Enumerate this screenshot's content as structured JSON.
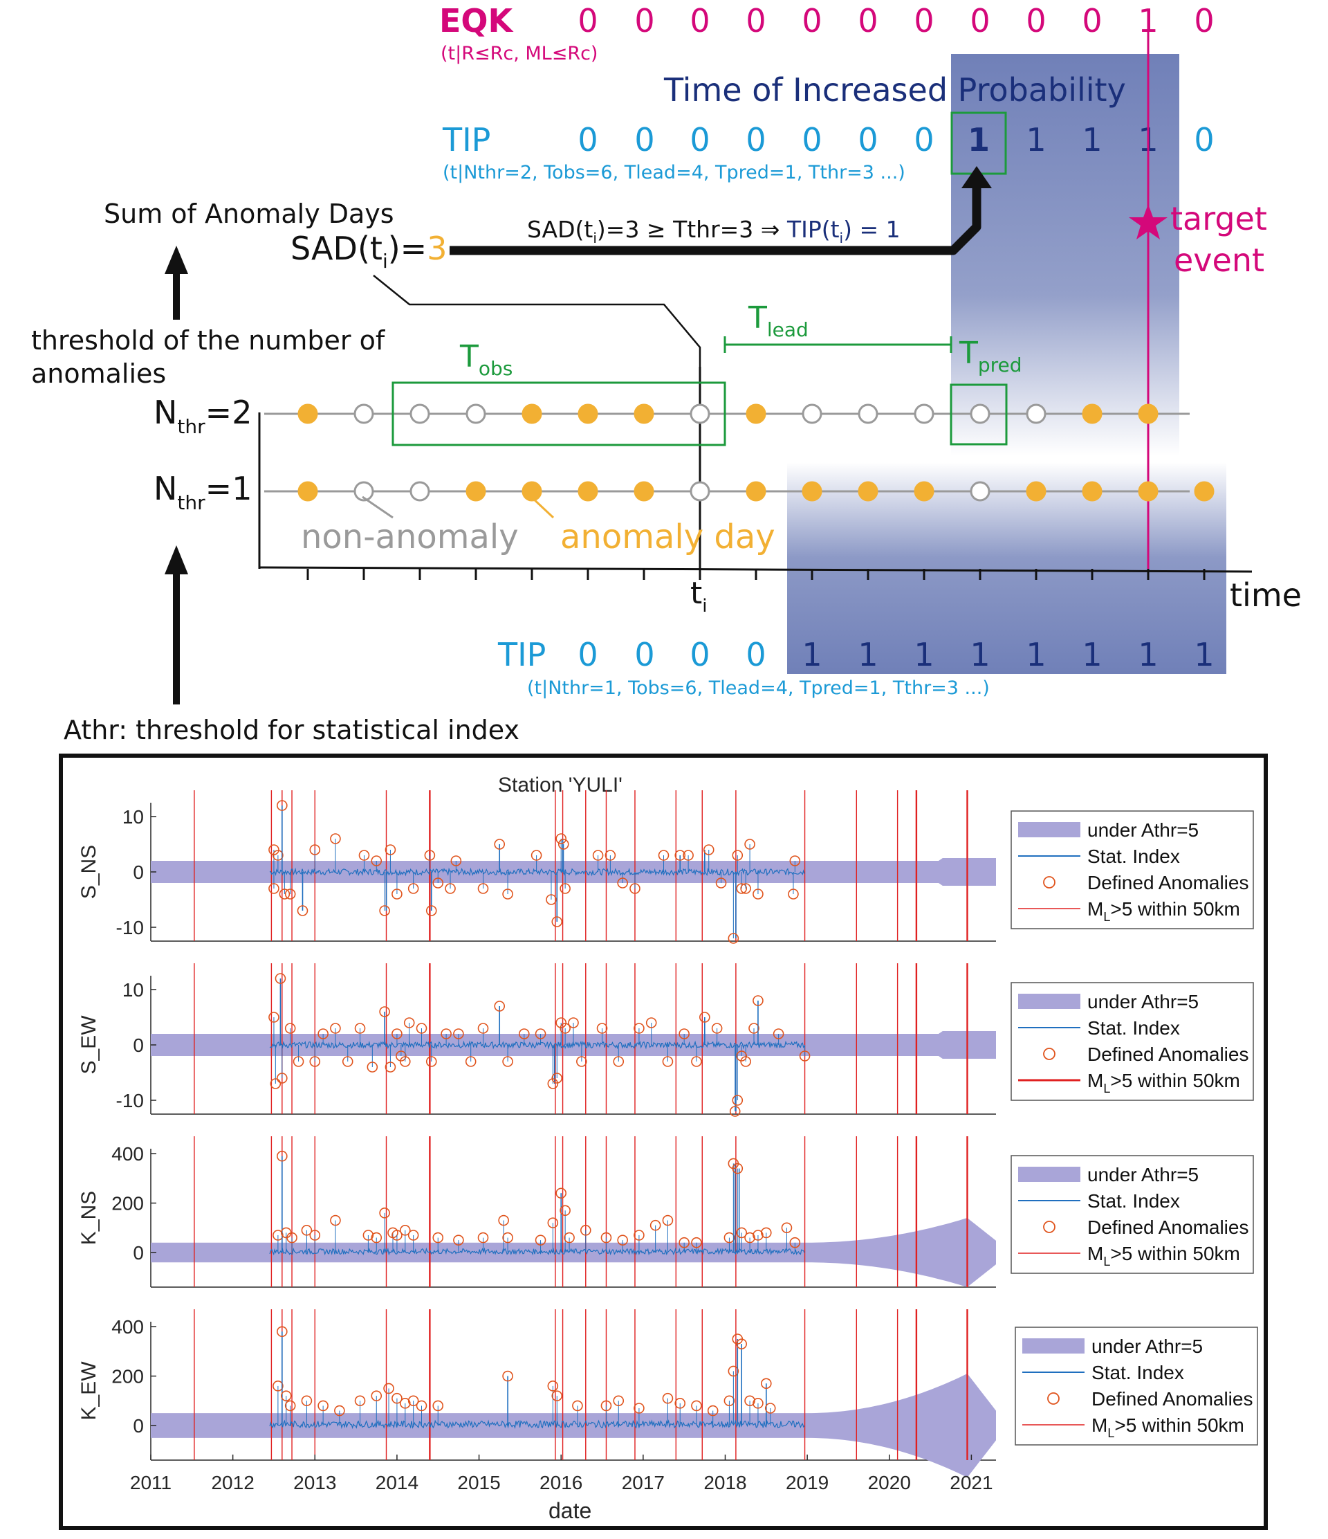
{
  "colors": {
    "magenta": "#d4087a",
    "cyan": "#1b9ad6",
    "navy": "#1a2f7a",
    "green": "#1c9a3c",
    "orange": "#f2b033",
    "gray": "#9a9a9a",
    "shade": "#7080b8",
    "band": "#a9a5d8",
    "series": "#1f6fbf",
    "anomaly": "#e0541d",
    "eq_line": "#e02020"
  },
  "diagram": {
    "eqk": {
      "label": "EQK",
      "sub": "(t|R≤Rc, ML≤Rc)",
      "values": [
        "0",
        "0",
        "0",
        "0",
        "0",
        "0",
        "0",
        "0",
        "0",
        "0",
        "1",
        "0"
      ]
    },
    "tip_title": "Time of Increased Probability",
    "tip2": {
      "label": "TIP",
      "sub": "(t|Nthr=2, Tobs=6, Tlead=4, Tpred=1, Tthr=3 ...)",
      "values": [
        "0",
        "0",
        "0",
        "0",
        "0",
        "0",
        "0",
        "1",
        "1",
        "1",
        "1",
        "0"
      ]
    },
    "tip1": {
      "label": "TIP",
      "sub": "(t|Nthr=1, Tobs=6, Tlead=4, Tpred=1, Tthr=3 ...)",
      "values": [
        "0",
        "0",
        "0",
        "0",
        "1",
        "1",
        "1",
        "1",
        "1",
        "1",
        "1",
        "1"
      ]
    },
    "sum_label": "Sum of Anomaly Days",
    "sad_label": "SAD(t",
    "sad_sub": "i",
    "sad_tail": ")=",
    "sad_value": "3",
    "rule_a": "SAD(t",
    "rule_sub": "i",
    "rule_b": ")=3 ≥ Tthr=3 ⇒ ",
    "rule_c": "TIP(t",
    "rule_d": ") = 1",
    "threshold_line1": "threshold of the number of",
    "threshold_line2": "anomalies",
    "nthr2": {
      "main": "N",
      "sub": "thr",
      "tail": "=2"
    },
    "nthr1": {
      "main": "N",
      "sub": "thr",
      "tail": "=1"
    },
    "tobs": {
      "main": "T",
      "sub": "obs"
    },
    "tlead": {
      "main": "T",
      "sub": "lead"
    },
    "tpred": {
      "main": "T",
      "sub": "pred"
    },
    "target_line1": "target",
    "target_line2": "event",
    "non_anomaly": "non-anomaly",
    "anomaly_day": "anomaly day",
    "ti_main": "t",
    "ti_sub": "i",
    "time_label": "time",
    "athr_label": "Athr: threshold for statistical index",
    "row2_anomaly": [
      1,
      0,
      0,
      0,
      1,
      1,
      1,
      0,
      1,
      0,
      0,
      0,
      0,
      0,
      1,
      1
    ],
    "row1_anomaly": [
      1,
      0,
      0,
      1,
      1,
      1,
      1,
      0,
      1,
      1,
      1,
      1,
      0,
      1,
      1,
      1,
      1
    ]
  },
  "chart_data": {
    "type": "line",
    "title": "Station 'YULI'",
    "xlabel": "date",
    "x_ticks": [
      "2011",
      "2012",
      "2013",
      "2014",
      "2015",
      "2016",
      "2017",
      "2018",
      "2019",
      "2020",
      "2021"
    ],
    "xlim": [
      2011,
      2021.3
    ],
    "eq_event_years": [
      2011.53,
      2012.47,
      2012.6,
      2012.72,
      2013.0,
      2013.87,
      2014.4,
      2015.93,
      2016.02,
      2016.3,
      2016.55,
      2016.9,
      2017.4,
      2017.72,
      2018.13,
      2018.97,
      2019.6,
      2020.1,
      2020.33,
      2020.95
    ],
    "legend": {
      "band": "under Athr=5",
      "series": "Stat. Index",
      "anomalies": "Defined Anomalies",
      "eq_main": "M",
      "eq_sub": "L",
      "eq_tail": ">5 within 50km"
    },
    "panels": [
      {
        "ylabel": "S_NS",
        "yticks": [
          "10",
          "0",
          "-10"
        ],
        "ylim": [
          -12.5,
          12.5
        ],
        "band_halfwidth": 2,
        "anomalies": [
          [
            2012.5,
            4
          ],
          [
            2012.55,
            3
          ],
          [
            2012.6,
            12
          ],
          [
            2012.63,
            -4
          ],
          [
            2012.7,
            -4
          ],
          [
            2012.5,
            -3
          ],
          [
            2012.85,
            -7
          ],
          [
            2013.0,
            4
          ],
          [
            2013.25,
            6
          ],
          [
            2013.6,
            3
          ],
          [
            2013.75,
            2
          ],
          [
            2013.85,
            -7
          ],
          [
            2013.92,
            4
          ],
          [
            2014.0,
            -4
          ],
          [
            2014.2,
            -3
          ],
          [
            2014.4,
            3
          ],
          [
            2014.42,
            -7
          ],
          [
            2014.5,
            -2
          ],
          [
            2014.65,
            -3
          ],
          [
            2014.72,
            2
          ],
          [
            2015.05,
            -3
          ],
          [
            2015.25,
            5
          ],
          [
            2015.35,
            -4
          ],
          [
            2015.7,
            3
          ],
          [
            2015.88,
            -5
          ],
          [
            2015.95,
            -9
          ],
          [
            2016.0,
            6
          ],
          [
            2016.03,
            5
          ],
          [
            2016.05,
            -3
          ],
          [
            2016.45,
            3
          ],
          [
            2016.6,
            3
          ],
          [
            2016.75,
            -2
          ],
          [
            2016.9,
            -3
          ],
          [
            2017.25,
            3
          ],
          [
            2017.45,
            3
          ],
          [
            2017.55,
            3
          ],
          [
            2017.8,
            4
          ],
          [
            2017.95,
            -2
          ],
          [
            2018.1,
            -12
          ],
          [
            2018.15,
            3
          ],
          [
            2018.3,
            5
          ],
          [
            2018.4,
            -4
          ],
          [
            2018.2,
            -3
          ],
          [
            2018.25,
            -3
          ],
          [
            2018.85,
            2
          ],
          [
            2018.83,
            -4
          ]
        ],
        "spikes": [
          [
            2012.6,
            12
          ],
          [
            2012.85,
            -7
          ],
          [
            2013.87,
            -7
          ],
          [
            2014.42,
            -7
          ],
          [
            2015.25,
            5
          ],
          [
            2015.95,
            -9
          ],
          [
            2016.02,
            6
          ],
          [
            2017.45,
            3
          ],
          [
            2017.75,
            4
          ],
          [
            2018.13,
            -12
          ]
        ]
      },
      {
        "ylabel": "S_EW",
        "yticks": [
          "10",
          "0",
          "-10"
        ],
        "ylim": [
          -12.5,
          12.5
        ],
        "band_halfwidth": 2,
        "anomalies": [
          [
            2012.5,
            5
          ],
          [
            2012.58,
            12
          ],
          [
            2012.6,
            -6
          ],
          [
            2012.52,
            -7
          ],
          [
            2012.7,
            3
          ],
          [
            2012.8,
            -3
          ],
          [
            2013.0,
            -3
          ],
          [
            2013.1,
            2
          ],
          [
            2013.25,
            3
          ],
          [
            2013.4,
            -3
          ],
          [
            2013.55,
            3
          ],
          [
            2013.7,
            -4
          ],
          [
            2013.85,
            6
          ],
          [
            2013.92,
            -4
          ],
          [
            2014.0,
            2
          ],
          [
            2014.05,
            -2
          ],
          [
            2014.1,
            -3
          ],
          [
            2014.15,
            4
          ],
          [
            2014.3,
            3
          ],
          [
            2014.42,
            -3
          ],
          [
            2014.6,
            2
          ],
          [
            2014.75,
            2
          ],
          [
            2014.9,
            -3
          ],
          [
            2015.05,
            3
          ],
          [
            2015.25,
            7
          ],
          [
            2015.35,
            -3
          ],
          [
            2015.55,
            2
          ],
          [
            2015.75,
            2
          ],
          [
            2015.9,
            -7
          ],
          [
            2015.95,
            -6
          ],
          [
            2016.0,
            4
          ],
          [
            2016.05,
            3
          ],
          [
            2016.15,
            4
          ],
          [
            2016.25,
            -3
          ],
          [
            2016.5,
            3
          ],
          [
            2016.7,
            -3
          ],
          [
            2016.95,
            3
          ],
          [
            2017.1,
            4
          ],
          [
            2017.3,
            -3
          ],
          [
            2017.5,
            2
          ],
          [
            2017.65,
            -3
          ],
          [
            2017.75,
            5
          ],
          [
            2017.9,
            3
          ],
          [
            2018.12,
            -12
          ],
          [
            2018.15,
            -10
          ],
          [
            2018.25,
            -3
          ],
          [
            2018.35,
            3
          ],
          [
            2018.4,
            8
          ],
          [
            2018.2,
            -2
          ],
          [
            2018.65,
            2
          ],
          [
            2018.97,
            -2
          ]
        ],
        "spikes": [
          [
            2012.58,
            12
          ],
          [
            2013.85,
            6
          ],
          [
            2015.25,
            7
          ],
          [
            2015.92,
            -7
          ],
          [
            2017.75,
            5
          ],
          [
            2018.13,
            -12
          ],
          [
            2018.4,
            8
          ]
        ]
      },
      {
        "ylabel": "K_NS",
        "yticks": [
          "400",
          "200",
          "0"
        ],
        "ylim": [
          -140,
          420
        ],
        "band_halfwidth": 40,
        "band_grow_to": 140,
        "anomalies": [
          [
            2012.55,
            70
          ],
          [
            2012.6,
            390
          ],
          [
            2012.65,
            80
          ],
          [
            2012.72,
            60
          ],
          [
            2012.9,
            90
          ],
          [
            2013.0,
            70
          ],
          [
            2013.25,
            130
          ],
          [
            2013.65,
            70
          ],
          [
            2013.75,
            60
          ],
          [
            2013.85,
            160
          ],
          [
            2013.95,
            80
          ],
          [
            2014.0,
            70
          ],
          [
            2014.1,
            90
          ],
          [
            2014.2,
            70
          ],
          [
            2014.5,
            60
          ],
          [
            2014.75,
            50
          ],
          [
            2015.05,
            60
          ],
          [
            2015.3,
            130
          ],
          [
            2015.35,
            60
          ],
          [
            2015.75,
            50
          ],
          [
            2015.9,
            120
          ],
          [
            2016.0,
            240
          ],
          [
            2016.05,
            170
          ],
          [
            2016.1,
            60
          ],
          [
            2016.3,
            90
          ],
          [
            2016.55,
            60
          ],
          [
            2016.75,
            50
          ],
          [
            2016.95,
            70
          ],
          [
            2017.15,
            110
          ],
          [
            2017.3,
            130
          ],
          [
            2017.5,
            40
          ],
          [
            2017.65,
            40
          ],
          [
            2018.05,
            60
          ],
          [
            2018.1,
            360
          ],
          [
            2018.15,
            340
          ],
          [
            2018.2,
            80
          ],
          [
            2018.3,
            60
          ],
          [
            2018.4,
            70
          ],
          [
            2018.5,
            80
          ],
          [
            2018.75,
            100
          ],
          [
            2018.85,
            40
          ]
        ],
        "spikes": [
          [
            2012.6,
            390
          ],
          [
            2016.0,
            240
          ],
          [
            2018.12,
            360
          ],
          [
            2018.17,
            340
          ]
        ]
      },
      {
        "ylabel": "K_EW",
        "yticks": [
          "400",
          "200",
          "0"
        ],
        "ylim": [
          -140,
          420
        ],
        "band_halfwidth": 50,
        "band_grow_to": 210,
        "anomalies": [
          [
            2012.55,
            160
          ],
          [
            2012.6,
            380
          ],
          [
            2012.65,
            120
          ],
          [
            2012.7,
            80
          ],
          [
            2012.9,
            100
          ],
          [
            2013.1,
            80
          ],
          [
            2013.3,
            60
          ],
          [
            2013.55,
            100
          ],
          [
            2013.75,
            120
          ],
          [
            2013.9,
            150
          ],
          [
            2014.0,
            110
          ],
          [
            2014.1,
            90
          ],
          [
            2014.2,
            100
          ],
          [
            2014.3,
            80
          ],
          [
            2014.5,
            80
          ],
          [
            2015.35,
            200
          ],
          [
            2015.9,
            160
          ],
          [
            2015.95,
            120
          ],
          [
            2016.2,
            80
          ],
          [
            2016.55,
            80
          ],
          [
            2016.7,
            100
          ],
          [
            2016.95,
            70
          ],
          [
            2017.3,
            110
          ],
          [
            2017.45,
            90
          ],
          [
            2017.65,
            80
          ],
          [
            2017.85,
            60
          ],
          [
            2018.05,
            100
          ],
          [
            2018.1,
            220
          ],
          [
            2018.15,
            350
          ],
          [
            2018.2,
            330
          ],
          [
            2018.3,
            100
          ],
          [
            2018.4,
            90
          ],
          [
            2018.5,
            170
          ],
          [
            2018.55,
            70
          ]
        ],
        "spikes": [
          [
            2012.6,
            380
          ],
          [
            2015.35,
            200
          ],
          [
            2018.15,
            350
          ],
          [
            2018.2,
            330
          ],
          [
            2018.5,
            170
          ]
        ]
      }
    ]
  }
}
